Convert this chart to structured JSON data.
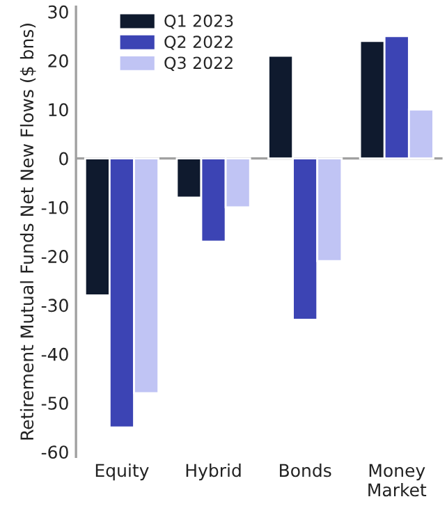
{
  "chart_data": {
    "type": "bar",
    "ylabel": "Retirement Mutual Funds Net New Flows ($ bns)",
    "categories": [
      "Equity",
      "Hybrid",
      "Bonds",
      "Money\nMarket"
    ],
    "series": [
      {
        "name": "Q1 2023",
        "color": "#0f1a2e",
        "values": [
          -28,
          -8,
          21,
          24
        ]
      },
      {
        "name": "Q2 2022",
        "color": "#3c44b4",
        "values": [
          -55,
          -17,
          -33,
          25
        ]
      },
      {
        "name": "Q3 2022",
        "color": "#c0c4f4",
        "values": [
          -48,
          -10,
          -21,
          10
        ]
      }
    ],
    "ylim": [
      -61,
      31
    ],
    "yticks": [
      -60,
      -50,
      -40,
      -30,
      -20,
      -10,
      0,
      10,
      20,
      30
    ],
    "ref_lines": [
      {
        "axis": "y",
        "value": 0,
        "color": "#a0a0a0"
      }
    ],
    "grid": false,
    "legend": "top left"
  }
}
